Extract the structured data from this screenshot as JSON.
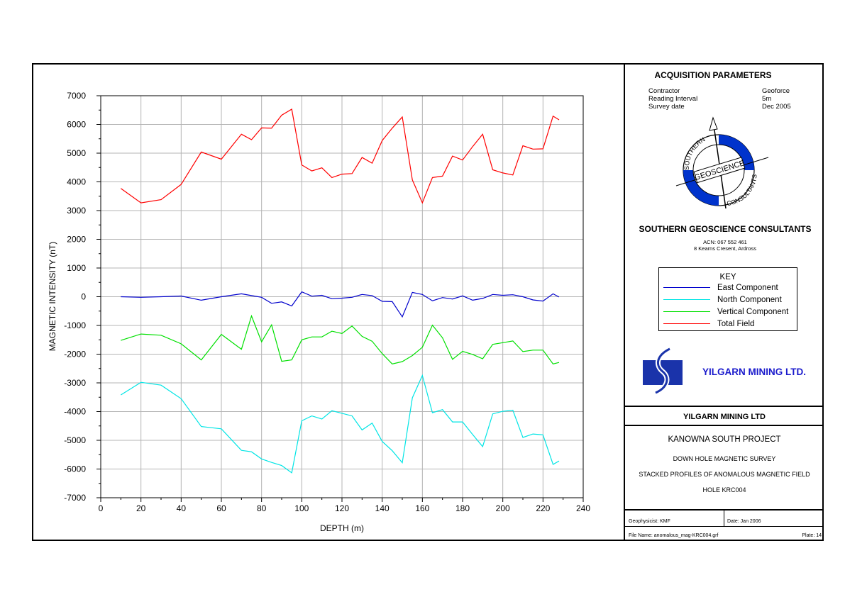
{
  "chart_data": {
    "type": "line",
    "title": "",
    "xlabel": "DEPTH (m)",
    "ylabel": "MAGNETIC INTENSITY (nT)",
    "xlim": [
      0,
      240
    ],
    "ylim": [
      -7000,
      7000
    ],
    "x_ticks": [
      "0",
      "20",
      "40",
      "60",
      "80",
      "100",
      "120",
      "140",
      "160",
      "180",
      "200",
      "220",
      "240"
    ],
    "y_ticks": [
      "7000",
      "6000",
      "5000",
      "4000",
      "3000",
      "2000",
      "1000",
      "0",
      "-1000",
      "-2000",
      "-3000",
      "-4000",
      "-5000",
      "-6000",
      "-7000"
    ],
    "grid": true,
    "x": [
      10,
      20,
      30,
      40,
      50,
      60,
      70,
      75,
      80,
      85,
      90,
      95,
      100,
      105,
      110,
      115,
      120,
      125,
      130,
      135,
      140,
      145,
      150,
      155,
      160,
      165,
      170,
      175,
      180,
      185,
      190,
      195,
      200,
      205,
      210,
      215,
      220,
      225,
      228
    ],
    "series": [
      {
        "name": "East Component",
        "color": "#0000cc",
        "values": [
          0,
          -20,
          0,
          25,
          -120,
          0,
          100,
          40,
          -20,
          -230,
          -180,
          -320,
          170,
          20,
          50,
          -70,
          -50,
          -20,
          80,
          40,
          -160,
          -170,
          -700,
          150,
          80,
          -140,
          -30,
          -80,
          30,
          -120,
          -60,
          80,
          50,
          70,
          0,
          -110,
          -150,
          100,
          -10
        ]
      },
      {
        "name": "North Component",
        "color": "#00e5e5",
        "values": [
          -3420,
          -2980,
          -3080,
          -3550,
          -4520,
          -4600,
          -5350,
          -5400,
          -5650,
          -5770,
          -5880,
          -6130,
          -4320,
          -4150,
          -4260,
          -3970,
          -4060,
          -4150,
          -4640,
          -4400,
          -5040,
          -5360,
          -5780,
          -3520,
          -2740,
          -4040,
          -3930,
          -4360,
          -4360,
          -4800,
          -5220,
          -4080,
          -3990,
          -3950,
          -4900,
          -4780,
          -4810,
          -5840,
          -5720
        ]
      },
      {
        "name": "Vertical Component",
        "color": "#00e000",
        "values": [
          -1520,
          -1300,
          -1340,
          -1640,
          -2200,
          -1310,
          -1830,
          -670,
          -1570,
          -980,
          -2250,
          -2200,
          -1500,
          -1400,
          -1400,
          -1200,
          -1280,
          -1020,
          -1380,
          -1550,
          -1980,
          -2340,
          -2260,
          -2050,
          -1760,
          -990,
          -1430,
          -2180,
          -1900,
          -2010,
          -2160,
          -1660,
          -1600,
          -1540,
          -1910,
          -1860,
          -1860,
          -2340,
          -2290
        ]
      },
      {
        "name": "Total Field",
        "color": "#ff0000",
        "values": [
          3770,
          3270,
          3380,
          3910,
          5040,
          4790,
          5660,
          5470,
          5880,
          5870,
          6320,
          6530,
          4590,
          4380,
          4490,
          4150,
          4270,
          4290,
          4850,
          4650,
          5440,
          5870,
          6260,
          4070,
          3270,
          4150,
          4200,
          4900,
          4760,
          5230,
          5660,
          4420,
          4310,
          4240,
          5260,
          5140,
          5150,
          6290,
          6160
        ]
      }
    ]
  },
  "acquisition": {
    "title": "ACQUISITION PARAMETERS",
    "rows": [
      {
        "label": "Contractor",
        "value": "Geoforce"
      },
      {
        "label": "Reading Interval",
        "value": "5m"
      },
      {
        "label": "Survey date",
        "value": "Dec 2005"
      }
    ]
  },
  "logo": {
    "top_text": "SOUTHERN",
    "mid_text": "GEOSCIENCE",
    "bottom_text": "CONSULTANTS",
    "accent": "#0033cc"
  },
  "company": {
    "name": "SOUTHERN GEOSCIENCE CONSULTANTS",
    "acn": "ACN: 067 552 461",
    "address": "8 Kearns Cresent, Ardross"
  },
  "key": {
    "title": "KEY"
  },
  "yilgarn": {
    "name": "YILGARN MINING LTD.",
    "color": "#1a1acc"
  },
  "title_block": {
    "client": "YILGARN MINING LTD",
    "project": "KANOWNA SOUTH PROJECT",
    "survey": "DOWN HOLE MAGNETIC SURVEY",
    "description": "STACKED PROFILES OF ANOMALOUS MAGNETIC FIELD",
    "hole": "HOLE KRC004",
    "geophysicist": "Geophysicist: KMF",
    "date": "Date: Jan 2006",
    "filename": "File Name: anomalous_mag-KRC004.grf",
    "plate": "Plate: 14"
  }
}
